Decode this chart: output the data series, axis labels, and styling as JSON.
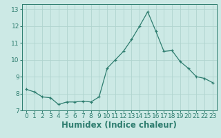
{
  "x": [
    0,
    1,
    2,
    3,
    4,
    5,
    6,
    7,
    8,
    9,
    10,
    11,
    12,
    13,
    14,
    15,
    16,
    17,
    18,
    19,
    20,
    21,
    22,
    23
  ],
  "y": [
    8.25,
    8.1,
    7.8,
    7.75,
    7.35,
    7.5,
    7.5,
    7.55,
    7.5,
    7.8,
    9.5,
    10.0,
    10.5,
    11.2,
    12.0,
    12.85,
    11.7,
    10.5,
    10.55,
    9.9,
    9.5,
    9.0,
    8.9,
    8.65
  ],
  "xlabel": "Humidex (Indice chaleur)",
  "ylim": [
    7.0,
    13.3
  ],
  "xlim": [
    -0.5,
    23.5
  ],
  "yticks": [
    7,
    8,
    9,
    10,
    11,
    12,
    13
  ],
  "xticks": [
    0,
    1,
    2,
    3,
    4,
    5,
    6,
    7,
    8,
    9,
    10,
    11,
    12,
    13,
    14,
    15,
    16,
    17,
    18,
    19,
    20,
    21,
    22,
    23
  ],
  "line_color": "#2e7d6f",
  "bg_color": "#cce9e5",
  "grid_color": "#b0d4cf",
  "tick_color": "#2e7d6f",
  "tick_label_fontsize": 6.5,
  "xlabel_fontsize": 8.5
}
